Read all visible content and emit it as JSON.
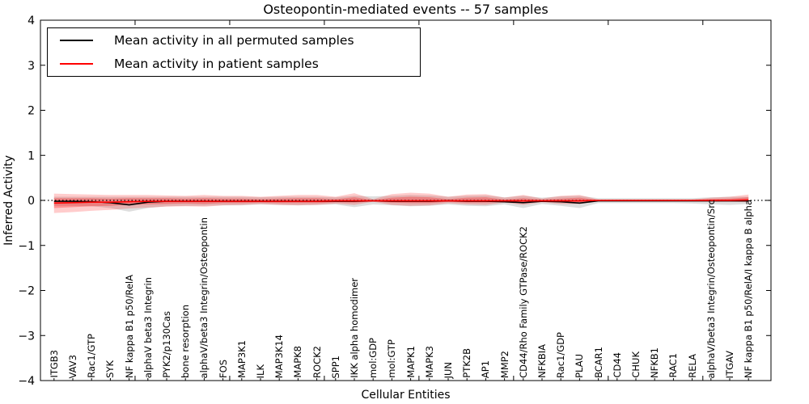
{
  "chart_data": {
    "type": "line",
    "title": "Osteopontin-mediated events -- 57 samples",
    "xlabel": "Cellular Entities",
    "ylabel": "Inferred Activity",
    "ylim": [
      -4,
      4
    ],
    "yticks": [
      -4,
      -3,
      -2,
      -1,
      0,
      1,
      2,
      3,
      4
    ],
    "grid": false,
    "legend_position": "upper left",
    "zero_line": {
      "y": 0,
      "style": "dotted",
      "color": "#000000"
    },
    "axis_color": "#000000",
    "categories": [
      "ITGB3",
      "VAV3",
      "Rac1/GTP",
      "SYK",
      "NF kappa B1 p50/RelA",
      "alphaV beta3 Integrin",
      "PYK2/p130Cas",
      "bone resorption",
      "alphaV/beta3 Integrin/Osteopontin",
      "FOS",
      "MAP3K1",
      "ILK",
      "MAP3K14",
      "MAPK8",
      "ROCK2",
      "SPP1",
      "IKK alpha homodimer",
      "mol:GDP",
      "mol:GTP",
      "MAPK1",
      "MAPK3",
      "JUN",
      "PTK2B",
      "AP1",
      "MMP2",
      "CD44/Rho Family GTPase/ROCK2",
      "NFKBIA",
      "Rac1/GDP",
      "PLAU",
      "BCAR1",
      "CD44",
      "CHUK",
      "NFKB1",
      "RAC1",
      "RELA",
      "alphaV/beta3 Integrin/Osteopontin/Src",
      "ITGAV",
      "NF kappa B1 p50/RelA/I kappa B alpha"
    ],
    "series": [
      {
        "name": "Mean activity in all permuted samples",
        "color": "#000000",
        "values": [
          -0.02,
          -0.02,
          -0.03,
          -0.05,
          -0.1,
          -0.04,
          -0.02,
          -0.02,
          -0.02,
          -0.02,
          -0.02,
          -0.02,
          -0.02,
          -0.02,
          -0.02,
          -0.02,
          -0.02,
          -0.01,
          -0.02,
          -0.02,
          -0.02,
          -0.01,
          -0.02,
          -0.02,
          -0.03,
          -0.05,
          -0.02,
          -0.03,
          -0.06,
          -0.01,
          -0.01,
          -0.01,
          -0.01,
          -0.01,
          -0.01,
          -0.01,
          -0.01,
          -0.01
        ]
      },
      {
        "name": "Mean activity in patient samples",
        "color": "#ff0000",
        "values": [
          -0.06,
          -0.05,
          -0.04,
          -0.04,
          -0.03,
          -0.02,
          -0.02,
          -0.02,
          -0.02,
          -0.02,
          -0.02,
          -0.02,
          -0.02,
          -0.02,
          -0.02,
          -0.01,
          -0.01,
          -0.01,
          -0.01,
          -0.01,
          -0.01,
          -0.01,
          -0.01,
          -0.01,
          -0.01,
          -0.01,
          -0.01,
          -0.01,
          -0.01,
          0,
          0,
          0,
          0,
          0,
          0,
          0,
          0,
          0.01
        ]
      }
    ],
    "bands": [
      {
        "name": "permuted-samples-range",
        "color": "#000000",
        "opacity": 0.13,
        "upper": [
          0.08,
          0.08,
          0.08,
          0.08,
          0.08,
          0.08,
          0.08,
          0.08,
          0.08,
          0.08,
          0.08,
          0.07,
          0.08,
          0.08,
          0.08,
          0.07,
          0.1,
          0.09,
          0.1,
          0.12,
          0.11,
          0.08,
          0.1,
          0.11,
          0.07,
          0.1,
          0.06,
          0.09,
          0.1,
          0.05,
          0.05,
          0.05,
          0.05,
          0.05,
          0.05,
          0.07,
          0.08,
          0.08
        ],
        "lower": [
          -0.12,
          -0.12,
          -0.13,
          -0.17,
          -0.25,
          -0.17,
          -0.13,
          -0.12,
          -0.12,
          -0.11,
          -0.11,
          -0.09,
          -0.1,
          -0.11,
          -0.1,
          -0.09,
          -0.15,
          -0.09,
          -0.11,
          -0.13,
          -0.12,
          -0.09,
          -0.12,
          -0.13,
          -0.09,
          -0.17,
          -0.08,
          -0.12,
          -0.17,
          -0.06,
          -0.06,
          -0.06,
          -0.06,
          -0.06,
          -0.07,
          -0.09,
          -0.1,
          -0.08
        ]
      },
      {
        "name": "patient-samples-range-outer",
        "color": "#ff0000",
        "opacity": 0.2,
        "upper": [
          0.15,
          0.14,
          0.13,
          0.12,
          0.12,
          0.12,
          0.11,
          0.1,
          0.12,
          0.1,
          0.1,
          0.08,
          0.1,
          0.12,
          0.12,
          0.08,
          0.16,
          0.03,
          0.14,
          0.17,
          0.15,
          0.08,
          0.13,
          0.14,
          0.06,
          0.12,
          0.04,
          0.1,
          0.12,
          0.02,
          0.02,
          0.02,
          0.02,
          0.02,
          0.02,
          0.06,
          0.08,
          0.13
        ],
        "lower": [
          -0.28,
          -0.26,
          -0.23,
          -0.21,
          -0.18,
          -0.16,
          -0.14,
          -0.13,
          -0.14,
          -0.11,
          -0.1,
          -0.08,
          -0.1,
          -0.11,
          -0.1,
          -0.07,
          -0.1,
          -0.03,
          -0.1,
          -0.12,
          -0.11,
          -0.06,
          -0.09,
          -0.1,
          -0.05,
          -0.1,
          -0.04,
          -0.08,
          -0.08,
          -0.02,
          -0.02,
          -0.02,
          -0.02,
          -0.02,
          -0.02,
          -0.03,
          -0.03,
          -0.04
        ]
      },
      {
        "name": "patient-samples-range-inner",
        "color": "#ff0000",
        "opacity": 0.28,
        "upper": [
          0.05,
          0.05,
          0.05,
          0.04,
          0.05,
          0.05,
          0.05,
          0.04,
          0.05,
          0.04,
          0.04,
          0.03,
          0.04,
          0.05,
          0.05,
          0.03,
          0.07,
          0.01,
          0.06,
          0.08,
          0.07,
          0.03,
          0.06,
          0.07,
          0.02,
          0.05,
          0.02,
          0.04,
          0.06,
          0.01,
          0.01,
          0.01,
          0.01,
          0.01,
          0.01,
          0.03,
          0.04,
          0.07
        ],
        "lower": [
          -0.17,
          -0.15,
          -0.13,
          -0.12,
          -0.1,
          -0.09,
          -0.08,
          -0.07,
          -0.08,
          -0.06,
          -0.06,
          -0.05,
          -0.06,
          -0.06,
          -0.06,
          -0.04,
          -0.05,
          -0.02,
          -0.05,
          -0.06,
          -0.06,
          -0.03,
          -0.05,
          -0.05,
          -0.03,
          -0.05,
          -0.02,
          -0.04,
          -0.04,
          -0.01,
          -0.01,
          -0.01,
          -0.01,
          -0.01,
          -0.01,
          -0.02,
          -0.02,
          -0.03
        ]
      }
    ]
  }
}
